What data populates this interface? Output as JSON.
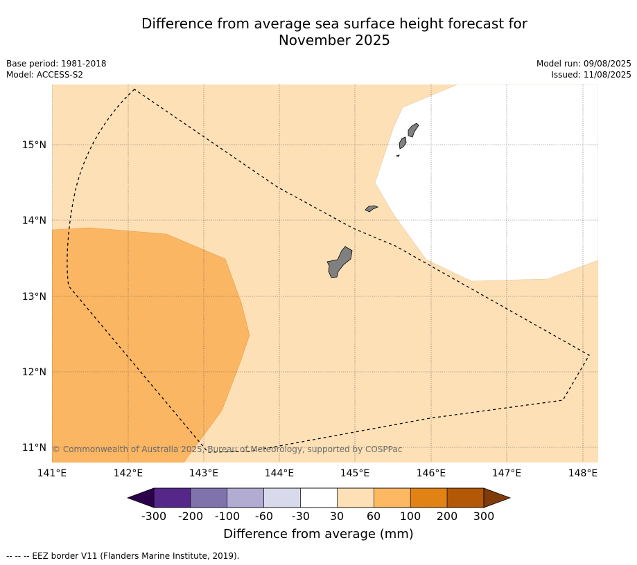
{
  "title": {
    "line1": "Difference from average sea surface height forecast for",
    "line2": "November 2025"
  },
  "meta_left": {
    "base_period": "Base period: 1981-2018",
    "model": "Model: ACCESS-S2"
  },
  "meta_right": {
    "model_run": "Model run: 09/08/2025",
    "issued": "Issued: 11/08/2025"
  },
  "map": {
    "lon_ticks": [
      "141°E",
      "142°E",
      "143°E",
      "144°E",
      "145°E",
      "146°E",
      "147°E",
      "148°E"
    ],
    "lat_ticks": [
      "15°N",
      "14°N",
      "13°N",
      "12°N",
      "11°N"
    ],
    "lon_range": [
      141.0,
      148.2
    ],
    "lat_range": [
      10.8,
      15.8
    ],
    "copyright": "© Commonwealth of Australia 2025, Bureau of Meteorology, supported by COSPPac",
    "land_color": "#808080",
    "ocean_nodata_color": "#ffffff"
  },
  "colorbar": {
    "labels": [
      "-300",
      "-200",
      "-100",
      "-60",
      "-30",
      "30",
      "60",
      "100",
      "200",
      "300"
    ],
    "colors": [
      "#542788",
      "#8073ac",
      "#b2abd2",
      "#d8daeb",
      "#ffffff",
      "#fee0b6",
      "#fdb863",
      "#e08214",
      "#b35806"
    ],
    "under_color": "#2d004b",
    "over_color": "#7f3b08",
    "title": "Difference from average (mm)"
  },
  "footer": {
    "legend": "--  --  -- EEZ border V11 (Flanders Marine Institute, 2019)."
  }
}
